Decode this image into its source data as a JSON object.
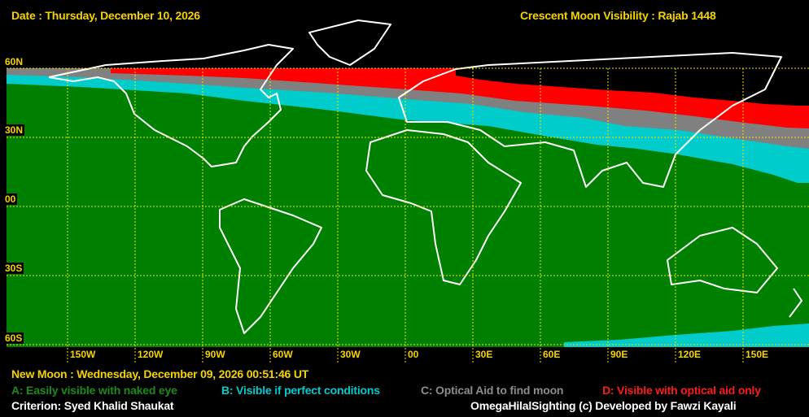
{
  "header": {
    "date": "Date : Thursday, December 10, 2026",
    "title": "Crescent Moon Visibility : Rajab  1448"
  },
  "map": {
    "lat_labels": [
      "60N",
      "30N",
      "00",
      "30S",
      "60S"
    ],
    "lon_labels": [
      "150W",
      "120W",
      "90W",
      "60W",
      "30W",
      "00",
      "30E",
      "60E",
      "90E",
      "120E",
      "150E"
    ],
    "zone_colors": {
      "A": "#008000",
      "B": "#00cccc",
      "C": "#808080",
      "D": "#ff0000"
    }
  },
  "footer": {
    "new_moon": "New Moon : Wednesday, December 09, 2026  00:51:46  UT",
    "legend": [
      {
        "label": "A: Easily visible with naked eye",
        "color": "#1a8a1a"
      },
      {
        "label": "B: Visible if perfect conditions",
        "color": "#00cccc"
      },
      {
        "label": "C: Optical Aid to find moon",
        "color": "#8c8c8c"
      },
      {
        "label": "D: Visible with optical aid only",
        "color": "#ff1a1a"
      }
    ],
    "criterion": "Criterion: Syed Khalid Shaukat",
    "credit": "OmegaHilalSighting  (c)  Developed by Fawzi Kayali"
  }
}
